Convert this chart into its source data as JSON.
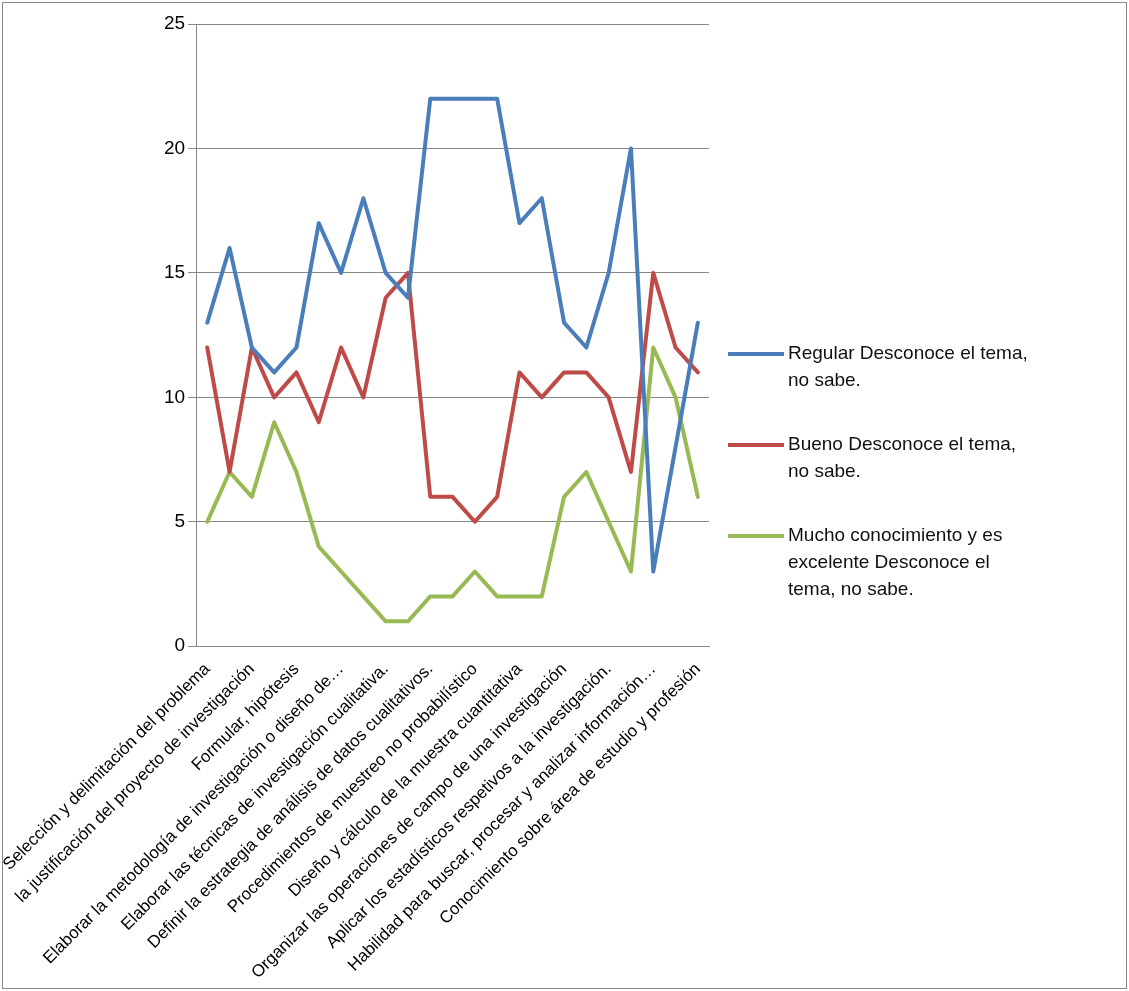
{
  "chart_data": {
    "type": "line",
    "categories": [
      "Selección y delimitación del problema",
      null,
      "la justificación del proyecto de investigación",
      null,
      "Formular, hipótesis",
      null,
      "Elaborar la metodología de investigación o diseño de…",
      null,
      "Elaborar las técnicas de investigación cualitativa.",
      null,
      "Definir la estrategia de análisis de datos cualitativos.",
      null,
      "Procedimientos de muestreo no probabilístico",
      null,
      "Diseño y cálculo de la muestra cuantitativa",
      null,
      "Organizar las operaciones de campo de una investigación",
      null,
      "Aplicar los estadísticos respetivos a la investigación.",
      null,
      "Habilidad para buscar, procesar y analizar información…",
      null,
      "Conocimiento sobre área de estudio y profesión"
    ],
    "series": [
      {
        "name": "Regular Desconoce el tema, no sabe.",
        "color": "#4a7ebb",
        "values": [
          13,
          16,
          12,
          11,
          12,
          17,
          15,
          18,
          15,
          14,
          22,
          22,
          22,
          22,
          17,
          18,
          13,
          12,
          15,
          20,
          3,
          8,
          13
        ]
      },
      {
        "name": "Bueno  Desconoce el tema, no sabe.",
        "color": "#be4b48",
        "values": [
          12,
          7,
          12,
          10,
          11,
          9,
          12,
          10,
          14,
          15,
          6,
          6,
          5,
          6,
          11,
          10,
          11,
          11,
          10,
          7,
          15,
          12,
          11
        ]
      },
      {
        "name": "Mucho conocimiento y es excelente  Desconoce el tema, no sabe.",
        "color": "#98b954",
        "values": [
          5,
          7,
          6,
          9,
          7,
          4,
          3,
          2,
          1,
          1,
          2,
          2,
          3,
          2,
          2,
          2,
          6,
          7,
          5,
          3,
          12,
          10,
          6
        ]
      }
    ],
    "ylim": [
      0,
      25
    ],
    "yticks": [
      0,
      5,
      10,
      15,
      20,
      25
    ],
    "grid": "y",
    "legend": "right",
    "marker": "none",
    "line_style": "solid"
  }
}
